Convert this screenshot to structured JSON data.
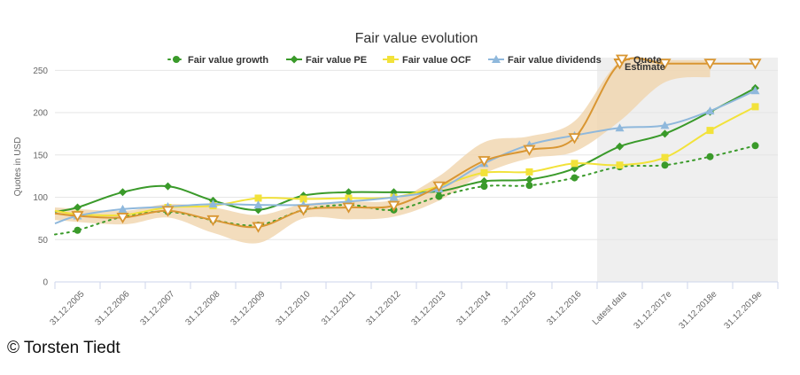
{
  "chart_data": {
    "type": "line",
    "title": "Fair value evolution",
    "ylabel": "Quotes in USD",
    "xlabel": "",
    "ylim": [
      0,
      265
    ],
    "yticks": [
      0,
      50,
      100,
      150,
      200,
      250
    ],
    "categories": [
      "31.12.2005",
      "31.12.2006",
      "31.12.2007",
      "31.12.2008",
      "31.12.2009",
      "31.12.2010",
      "31.12.2011",
      "31.12.2012",
      "31.12.2013",
      "31.12.2014",
      "31.12.2015",
      "31.12.2016",
      "Latest data",
      "31.12.2017e",
      "31.12.2018e",
      "31.12.2019e"
    ],
    "estimate_label": "Estimate",
    "estimate_from_index": 12,
    "series": [
      {
        "name": "Fair value growth",
        "color": "#3a9a2a",
        "style": "dotted",
        "marker": "circle",
        "values": [
          61,
          77,
          83,
          73,
          67,
          85,
          91,
          85,
          101,
          113,
          114,
          123,
          136,
          138,
          148,
          161
        ],
        "lead_in": 56
      },
      {
        "name": "Fair value PE",
        "color": "#3a9a2a",
        "style": "solid",
        "marker": "diamond",
        "values": [
          88,
          106,
          113,
          96,
          85,
          102,
          106,
          106,
          107,
          119,
          121,
          134,
          160,
          175,
          201,
          229
        ],
        "lead_in": 83
      },
      {
        "name": "Fair value OCF",
        "color": "#f2e23a",
        "style": "solid",
        "marker": "square",
        "values": [
          80,
          79,
          88,
          90,
          99,
          98,
          99,
          100,
          113,
          129,
          130,
          140,
          138,
          147,
          179,
          207
        ],
        "lead_in": 84
      },
      {
        "name": "Fair value dividends",
        "color": "#8fb8dc",
        "style": "solid",
        "marker": "triangle",
        "values": [
          78,
          86,
          89,
          92,
          91,
          91,
          95,
          100,
          110,
          140,
          162,
          173,
          182,
          185,
          202,
          226
        ],
        "lead_in": 69
      },
      {
        "name": "Quote",
        "color": "#d99632",
        "style": "solid",
        "marker": "triangle-down",
        "values": [
          78,
          76,
          84,
          73,
          65,
          85,
          88,
          90,
          113,
          143,
          156,
          170,
          258,
          258,
          258,
          258
        ],
        "lead_in": 81
      }
    ],
    "quote_band": {
      "color": "#f0d4ad",
      "upper": [
        88,
        84,
        92,
        88,
        79,
        92,
        95,
        97,
        125,
        165,
        172,
        190,
        260,
        262,
        262
      ],
      "lower": [
        73,
        68,
        76,
        58,
        46,
        75,
        74,
        77,
        96,
        128,
        146,
        154,
        190,
        236,
        242
      ]
    }
  },
  "copyright": "© Torsten Tiedt"
}
